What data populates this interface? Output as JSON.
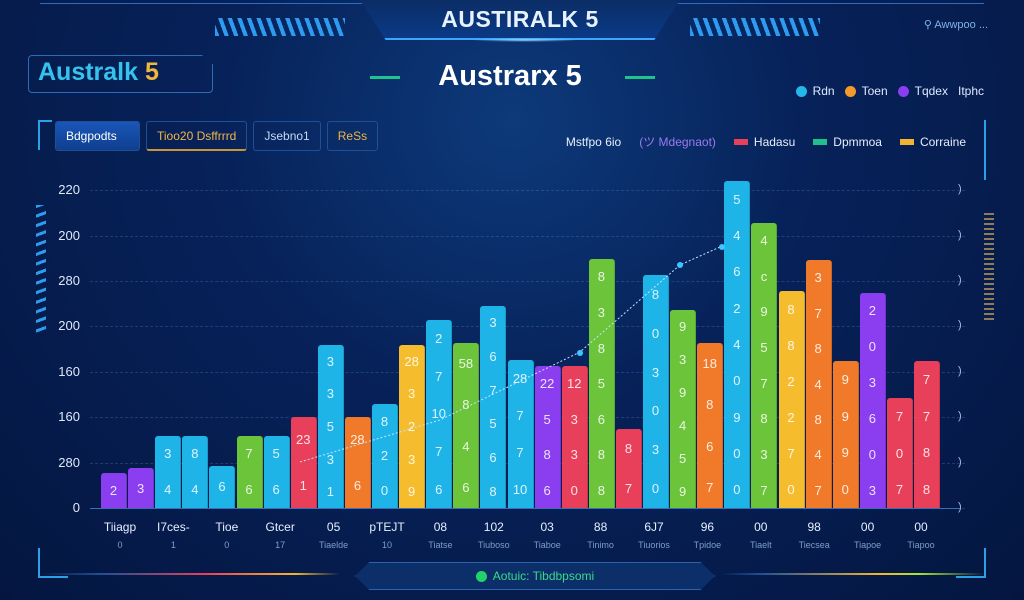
{
  "header": {
    "title": "AUSTIRALK 5",
    "top_right": "Awwpoo ...",
    "top_right_icon": "location-pin-icon"
  },
  "brand": {
    "name": "Australk",
    "num": "5"
  },
  "subtitle": "Austrarx 5",
  "top_legend": [
    {
      "label": "Rdn",
      "color": "#22b8e8"
    },
    {
      "label": "Toen",
      "color": "#f39a2a"
    },
    {
      "label": "Tqdex",
      "color": "#8b3df0"
    },
    {
      "label": "Itphc",
      "color": null
    }
  ],
  "tabs": [
    {
      "label": "Bdgpodts",
      "active": true
    },
    {
      "label": "Tioo20 Dsffrrrd"
    },
    {
      "label": "Jsebno1"
    },
    {
      "label": "ReSs"
    }
  ],
  "series_legend": [
    {
      "label": "Mstfpo 6io",
      "color": null
    },
    {
      "label": "(ツ Mdegnaot)",
      "color": null
    },
    {
      "label": "Hadasu",
      "color": "#e8405a"
    },
    {
      "label": "Dpmmoa",
      "color": "#20c08a"
    },
    {
      "label": "Corraine",
      "color": "#f2b531"
    }
  ],
  "status": {
    "label": "Aotuic: Tibdbpsomi",
    "color": "#22d36b"
  },
  "chart_data": {
    "type": "bar",
    "title": "Austrarx 5",
    "ylim": [
      0,
      7.5
    ],
    "y_ticks": [
      {
        "v": 0,
        "label": "0"
      },
      {
        "v": 1,
        "label": "280"
      },
      {
        "v": 2,
        "label": "160"
      },
      {
        "v": 3,
        "label": "160"
      },
      {
        "v": 4,
        "label": "200"
      },
      {
        "v": 5,
        "label": "280"
      },
      {
        "v": 6,
        "label": "200"
      },
      {
        "v": 7,
        "label": "220"
      }
    ],
    "right_tick": ")",
    "grid": true,
    "bars": [
      {
        "v": 0.77,
        "c": "#8b3df0",
        "d": [
          "2"
        ]
      },
      {
        "v": 0.88,
        "c": "#8b3df0",
        "d": [
          "3"
        ]
      },
      {
        "v": 1.59,
        "c": "#1fb4e8",
        "d": [
          "3",
          "4"
        ]
      },
      {
        "v": 1.59,
        "c": "#1fb4e8",
        "d": [
          "8",
          "4"
        ]
      },
      {
        "v": 0.93,
        "c": "#1fb4e8",
        "d": [
          "6"
        ]
      },
      {
        "v": 1.59,
        "c": "#6cc43a",
        "d": [
          "7",
          "6"
        ]
      },
      {
        "v": 1.59,
        "c": "#1fb4e8",
        "d": [
          "5",
          "6"
        ]
      },
      {
        "v": 2.0,
        "c": "#e8405a",
        "d": [
          "23",
          "1"
        ]
      },
      {
        "v": 3.59,
        "c": "#1fb4e8",
        "d": [
          "3",
          "3",
          "5",
          "3",
          "1"
        ]
      },
      {
        "v": 2.0,
        "c": "#f07a2a",
        "d": [
          "28",
          "6"
        ]
      },
      {
        "v": 2.29,
        "c": "#1fb4e8",
        "d": [
          "8",
          "2",
          "0"
        ]
      },
      {
        "v": 3.59,
        "c": "#f5bd2e",
        "d": [
          "28",
          "3",
          "2",
          "3",
          "9"
        ]
      },
      {
        "v": 4.14,
        "c": "#1fb4e8",
        "d": [
          "2",
          "7",
          "10",
          "7",
          "6"
        ]
      },
      {
        "v": 3.63,
        "c": "#6cc43a",
        "d": [
          "58",
          "8",
          "4",
          "6"
        ]
      },
      {
        "v": 4.45,
        "c": "#1fb4e8",
        "d": [
          "3",
          "6",
          "7",
          "5",
          "6",
          "8"
        ]
      },
      {
        "v": 3.26,
        "c": "#1fb4e8",
        "d": [
          "28",
          "7",
          "7",
          "10"
        ]
      },
      {
        "v": 3.13,
        "c": "#8b3df0",
        "d": [
          "22",
          "5",
          "8",
          "6"
        ]
      },
      {
        "v": 3.13,
        "c": "#e8405a",
        "d": [
          "12",
          "3",
          "3",
          "0"
        ]
      },
      {
        "v": 5.48,
        "c": "#6cc43a",
        "d": [
          "8",
          "3",
          "8",
          "5",
          "6",
          "8",
          "8"
        ]
      },
      {
        "v": 1.74,
        "c": "#e8405a",
        "d": [
          "8",
          "7"
        ]
      },
      {
        "v": 5.13,
        "c": "#1fb4e8",
        "d": [
          "8",
          "0",
          "3",
          "0",
          "3",
          "0"
        ]
      },
      {
        "v": 4.36,
        "c": "#6cc43a",
        "d": [
          "9",
          "3",
          "9",
          "4",
          "5",
          "9"
        ]
      },
      {
        "v": 3.63,
        "c": "#f07a2a",
        "d": [
          "18",
          "8",
          "6",
          "7"
        ]
      },
      {
        "v": 7.2,
        "c": "#1fb4e8",
        "d": [
          "5",
          "4",
          "6",
          "2",
          "4",
          "0",
          "9",
          "0",
          "0"
        ]
      },
      {
        "v": 6.28,
        "c": "#6cc43a",
        "d": [
          "4",
          "c",
          "9",
          "5",
          "7",
          "8",
          "3",
          "7"
        ]
      },
      {
        "v": 4.78,
        "c": "#f5bd2e",
        "d": [
          "8",
          "8",
          "2",
          "2",
          "7",
          "0"
        ]
      },
      {
        "v": 5.46,
        "c": "#f07a2a",
        "d": [
          "3",
          "7",
          "8",
          "4",
          "8",
          "4",
          "7"
        ]
      },
      {
        "v": 3.24,
        "c": "#f07a2a",
        "d": [
          "9",
          "9",
          "9",
          "0"
        ]
      },
      {
        "v": 4.74,
        "c": "#8b3df0",
        "d": [
          "2",
          "0",
          "3",
          "6",
          "0",
          "3"
        ]
      },
      {
        "v": 2.42,
        "c": "#e8405a",
        "d": [
          "7",
          "0",
          "7"
        ]
      },
      {
        "v": 3.24,
        "c": "#e8405a",
        "d": [
          "7",
          "7",
          "8",
          "8"
        ]
      }
    ],
    "x_labels": [
      {
        "a": "Tiiagp",
        "b": "0"
      },
      {
        "a": "I7ces-",
        "b": "1"
      },
      {
        "a": "Tioe",
        "b": "0"
      },
      {
        "a": "Gtcer",
        "b": "17"
      },
      {
        "a": "05",
        "b": "Tiaelde"
      },
      {
        "a": "pTEJT",
        "b": "10"
      },
      {
        "a": "08",
        "b": "Tiatse"
      },
      {
        "a": "102",
        "b": "Tiuboso"
      },
      {
        "a": "03",
        "b": "Tiaboe"
      },
      {
        "a": "88",
        "b": "Tinimo"
      },
      {
        "a": "6J7",
        "b": "Tiuorios"
      },
      {
        "a": "96",
        "b": "Tpidoe"
      },
      {
        "a": "00",
        "b": "Tiaelt"
      },
      {
        "a": "98",
        "b": "Tiecsea"
      },
      {
        "a": "00",
        "b": "Tiapoe"
      },
      {
        "a": "00",
        "b": "Tiapoo"
      }
    ],
    "trend_points": [
      [
        2.4,
        1.4
      ],
      [
        4.0,
        2.0
      ],
      [
        6.4,
        3.5
      ],
      [
        7.0,
        5.0
      ]
    ]
  }
}
